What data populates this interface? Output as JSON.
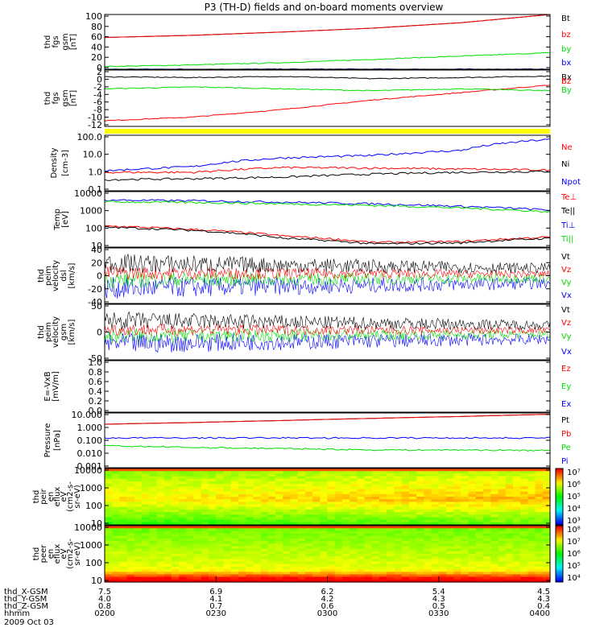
{
  "title": "P3 (TH-D) fields and on-board moments overview",
  "colors": {
    "black": "#000000",
    "red": "#ff0000",
    "green": "#00dd00",
    "blue": "#0000ff",
    "yellow": "#ffff00"
  },
  "chart_data": [
    {
      "id": "fgs_gsm_mag",
      "type": "line",
      "ylabel": [
        "thd",
        "fgs",
        "gsm",
        "[nT]"
      ],
      "yticks": [
        "100",
        "80",
        "60",
        "40",
        "20",
        "0"
      ],
      "ylim": [
        0,
        100
      ],
      "legend": [
        {
          "label": "Bt",
          "color": "#000000"
        },
        {
          "label": "bz",
          "color": "#ff0000"
        },
        {
          "label": "by",
          "color": "#00dd00"
        },
        {
          "label": "bx",
          "color": "#0000ff"
        }
      ],
      "series": [
        {
          "name": "Bt",
          "color": "#000000",
          "values": [
            58,
            62,
            68,
            75,
            85,
            100
          ]
        },
        {
          "name": "bz",
          "color": "#ff0000",
          "values": [
            58,
            62,
            68,
            75,
            85,
            100
          ]
        },
        {
          "name": "by",
          "color": "#00dd00",
          "values": [
            5,
            8,
            12,
            18,
            24,
            30
          ]
        },
        {
          "name": "bx",
          "color": "#0000ff",
          "values": [
            0,
            0,
            0,
            0,
            0,
            0
          ]
        }
      ]
    },
    {
      "id": "fgs_gsm_comp",
      "type": "line",
      "ylabel": [
        "thd",
        "fgs",
        "gsm",
        "[nT]"
      ],
      "yticks": [
        "2",
        "0",
        "-2",
        "-4",
        "-6",
        "-8",
        "-10",
        "-12"
      ],
      "ylim": [
        -13,
        2
      ],
      "legend": [
        {
          "label": "Bx",
          "color": "#000000"
        },
        {
          "label": "Bz",
          "color": "#ff0000"
        },
        {
          "label": "By",
          "color": "#00dd00"
        }
      ],
      "series": [
        {
          "name": "Bx",
          "color": "#000000",
          "values": [
            0.2,
            0,
            0.3,
            -0.3,
            0,
            0.4
          ]
        },
        {
          "name": "Bz",
          "color": "#ff0000",
          "values": [
            -11.5,
            -10.5,
            -8.5,
            -6,
            -4,
            -2
          ]
        },
        {
          "name": "By",
          "color": "#00dd00",
          "values": [
            -3,
            -2.5,
            -3,
            -3.5,
            -3,
            -3.5
          ]
        }
      ]
    },
    {
      "id": "density",
      "type": "line",
      "ylabel": [
        "Density",
        "[cm-3]"
      ],
      "yticks": [
        "100.0",
        "10.0",
        "1.0",
        "0.1"
      ],
      "ylim": [
        0.1,
        100
      ],
      "scale": "log",
      "legend": [
        {
          "label": "Ne",
          "color": "#ff0000"
        },
        {
          "label": "Ni",
          "color": "#000000"
        },
        {
          "label": "Npot",
          "color": "#0000ff"
        }
      ],
      "series": [
        {
          "name": "Ne",
          "color": "#ff0000",
          "values": [
            1.0,
            1.0,
            1.8,
            1.7,
            1.5,
            1.3
          ]
        },
        {
          "name": "Ni",
          "color": "#000000",
          "values": [
            0.4,
            0.45,
            0.55,
            0.8,
            1.0,
            1.1
          ]
        },
        {
          "name": "Npot",
          "color": "#0000ff",
          "values": [
            1.2,
            2,
            6,
            8,
            15,
            60
          ]
        }
      ]
    },
    {
      "id": "temperature",
      "type": "line",
      "ylabel": [
        "Temp",
        "[eV]"
      ],
      "yticks": [
        "10000",
        "1000",
        "100",
        "10"
      ],
      "ylim": [
        10,
        10000
      ],
      "scale": "log",
      "legend": [
        {
          "label": "Te⊥",
          "color": "#ff0000"
        },
        {
          "label": "Te||",
          "color": "#000000"
        },
        {
          "label": "Ti⊥",
          "color": "#0000ff"
        },
        {
          "label": "Ti||",
          "color": "#00dd00"
        }
      ],
      "series": [
        {
          "name": "Te⊥",
          "color": "#ff0000",
          "values": [
            140,
            90,
            40,
            18,
            20,
            35
          ]
        },
        {
          "name": "Te||",
          "color": "#000000",
          "values": [
            120,
            80,
            30,
            15,
            17,
            30
          ]
        },
        {
          "name": "Ti⊥",
          "color": "#0000ff",
          "values": [
            3500,
            3200,
            2700,
            2200,
            1600,
            1000
          ]
        },
        {
          "name": "Ti||",
          "color": "#00dd00",
          "values": [
            2800,
            2600,
            2200,
            1800,
            1300,
            800
          ]
        }
      ]
    },
    {
      "id": "peim_velocity_dsl",
      "type": "line",
      "ylabel": [
        "thd",
        "peim",
        "velocity",
        "dsl",
        "[km/s]"
      ],
      "yticks": [
        "40",
        "20",
        "0",
        "-20",
        "-40"
      ],
      "ylim": [
        -40,
        40
      ],
      "legend": [
        {
          "label": "Vt",
          "color": "#000000"
        },
        {
          "label": "Vz",
          "color": "#ff0000"
        },
        {
          "label": "Vy",
          "color": "#00dd00"
        },
        {
          "label": "Vx",
          "color": "#0000ff"
        }
      ]
    },
    {
      "id": "peim_velocity_gsm",
      "type": "line",
      "ylabel": [
        "thd",
        "peim",
        "velocity",
        "gsm",
        "[km/s]"
      ],
      "yticks": [
        "50",
        "0",
        "-50"
      ],
      "ylim": [
        -60,
        60
      ],
      "legend": [
        {
          "label": "Vt",
          "color": "#000000"
        },
        {
          "label": "Vz",
          "color": "#ff0000"
        },
        {
          "label": "Vy",
          "color": "#00dd00"
        },
        {
          "label": "Vx",
          "color": "#0000ff"
        }
      ]
    },
    {
      "id": "e_vxb",
      "type": "line",
      "ylabel": [
        "E=-VxB",
        "[mV/m]"
      ],
      "yticks": [
        "1.0",
        "0.8",
        "0.6",
        "0.4",
        "0.2",
        "0.0"
      ],
      "ylim": [
        0,
        1
      ],
      "legend": [
        {
          "label": "Ez",
          "color": "#ff0000"
        },
        {
          "label": "Ey",
          "color": "#00dd00"
        },
        {
          "label": "Ex",
          "color": "#0000ff"
        }
      ]
    },
    {
      "id": "pressure",
      "type": "line",
      "ylabel": [
        "Pressure",
        "[nPa]"
      ],
      "yticks": [
        "10.000",
        "1.000",
        "0.100",
        "0.010",
        "0.001"
      ],
      "ylim": [
        0.001,
        10
      ],
      "scale": "log",
      "legend": [
        {
          "label": "Pt",
          "color": "#000000"
        },
        {
          "label": "Pb",
          "color": "#ff0000"
        },
        {
          "label": "Pe",
          "color": "#00dd00"
        },
        {
          "label": "Pi",
          "color": "#0000ff"
        }
      ],
      "series": [
        {
          "name": "Pt",
          "color": "#000000",
          "values": [
            1.5,
            2.0,
            2.8,
            4.0,
            5.5,
            8.0
          ]
        },
        {
          "name": "Pb",
          "color": "#ff0000",
          "values": [
            1.5,
            2.0,
            2.8,
            4.0,
            5.5,
            8.0
          ]
        },
        {
          "name": "Pe",
          "color": "#00dd00",
          "values": [
            0.04,
            0.03,
            0.025,
            0.02,
            0.02,
            0.018
          ]
        },
        {
          "name": "Pi",
          "color": "#0000ff",
          "values": [
            0.15,
            0.15,
            0.15,
            0.15,
            0.15,
            0.15
          ]
        }
      ]
    },
    {
      "id": "peir_spectrogram",
      "type": "heatmap",
      "ylabel": [
        "thd",
        "peir",
        "en",
        "eflux",
        "eV",
        "(cm2-s-",
        "sr-eV)"
      ],
      "yticks": [
        "10000",
        "1000",
        "100",
        "10"
      ],
      "ylim": [
        10,
        20000
      ],
      "scale": "log",
      "colorbar": [
        "10⁷",
        "10⁶",
        "10⁵",
        "10⁴",
        "10³"
      ]
    },
    {
      "id": "peer_spectrogram",
      "type": "heatmap",
      "ylabel": [
        "thd",
        "peer",
        "en",
        "eflux",
        "eV",
        "(cm2-s-",
        "sr-eV)"
      ],
      "yticks": [
        "10000",
        "1000",
        "100",
        "10"
      ],
      "ylim": [
        8,
        20000
      ],
      "scale": "log",
      "colorbar": [
        "10⁸",
        "10⁷",
        "10⁶",
        "10⁵",
        "10⁴"
      ]
    }
  ],
  "xaxis": {
    "rows": [
      {
        "label": "thd_X-GSM",
        "values": [
          "7.5",
          "6.9",
          "6.2",
          "5.4",
          "4.5"
        ]
      },
      {
        "label": "thd_Y-GSM",
        "values": [
          "4.0",
          "4.1",
          "4.2",
          "4.3",
          "4.3"
        ]
      },
      {
        "label": "thd_Z-GSM",
        "values": [
          "0.8",
          "0.7",
          "0.6",
          "0.5",
          "0.4"
        ]
      },
      {
        "label": "hhmm",
        "values": [
          "0200",
          "0230",
          "0300",
          "0330",
          "0400"
        ]
      }
    ],
    "date": "2009 Oct 03"
  }
}
